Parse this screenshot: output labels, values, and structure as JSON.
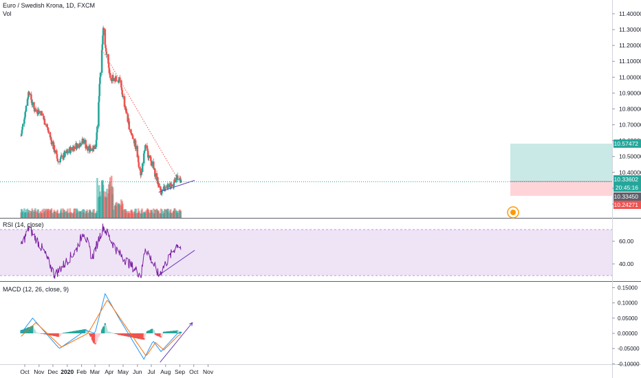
{
  "header": {
    "symbol_title": "Euro / Swedish Krona, 1D, FXCM",
    "volume_label": "Vol"
  },
  "panes": {
    "rsi": {
      "title": "RSI (14, close)",
      "ticks": [
        "60.00",
        "40.00"
      ]
    },
    "macd": {
      "title": "MACD (12, 26, close, 9)",
      "ticks": [
        "0.15000",
        "0.10000",
        "0.05000",
        "0.00000",
        "-0.05000",
        "-0.10000"
      ]
    }
  },
  "price_axis": {
    "ticks": [
      "11.40000",
      "11.30000",
      "11.20000",
      "11.10000",
      "11.00000",
      "10.90000",
      "10.80000",
      "10.70000",
      "10.60000",
      "10.50000",
      "10.40000",
      "10.30000",
      "10.20000"
    ],
    "labels": {
      "target": "10.57472",
      "current": "10.33602",
      "countdown": "20:45:16",
      "entry": "10.33450",
      "stop": "10.24271"
    }
  },
  "time_axis": {
    "labels": [
      "Oct",
      "Nov",
      "Dec",
      "2020",
      "Feb",
      "Mar",
      "Apr",
      "May",
      "Jun",
      "Jul",
      "Aug",
      "Sep",
      "Oct",
      "Nov"
    ]
  },
  "colors": {
    "up": "#26a69a",
    "down": "#ef5350",
    "rsi": "#7b1fa2",
    "macd": "#2196f3",
    "signal": "#ff6d00",
    "trend": "#673ab7"
  },
  "chart_data": [
    {
      "type": "candlestick",
      "title": "Euro / Swedish Krona, 1D, FXCM",
      "ylim": [
        10.2,
        11.42
      ],
      "key_points": [
        {
          "date": "2019-09-23",
          "close": 10.63
        },
        {
          "date": "2019-10-10",
          "close": 10.92
        },
        {
          "date": "2019-10-20",
          "close": 10.8
        },
        {
          "date": "2019-11-05",
          "close": 10.78
        },
        {
          "date": "2019-11-20",
          "close": 10.67
        },
        {
          "date": "2019-12-12",
          "close": 10.47
        },
        {
          "date": "2020-01-10",
          "close": 10.55
        },
        {
          "date": "2020-02-06",
          "close": 10.6
        },
        {
          "date": "2020-02-14",
          "close": 10.54
        },
        {
          "date": "2020-03-03",
          "close": 10.57
        },
        {
          "date": "2020-03-16",
          "close": 11.18
        },
        {
          "date": "2020-03-19",
          "close": 11.3
        },
        {
          "date": "2020-04-03",
          "close": 11.0
        },
        {
          "date": "2020-04-23",
          "close": 10.98
        },
        {
          "date": "2020-05-15",
          "close": 10.68
        },
        {
          "date": "2020-05-27",
          "close": 10.58
        },
        {
          "date": "2020-06-09",
          "close": 10.38
        },
        {
          "date": "2020-06-18",
          "close": 10.56
        },
        {
          "date": "2020-07-03",
          "close": 10.45
        },
        {
          "date": "2020-07-15",
          "close": 10.34
        },
        {
          "date": "2020-07-22",
          "close": 10.28
        },
        {
          "date": "2020-08-18",
          "close": 10.33
        },
        {
          "date": "2020-08-26",
          "close": 10.38
        },
        {
          "date": "2020-09-03",
          "close": 10.336
        }
      ],
      "current_price": 10.33602,
      "position": {
        "target": 10.57472,
        "entry": 10.3345,
        "stop": 10.24271
      },
      "trendlines": [
        {
          "from": {
            "date": "2020-03-17",
            "y": 11.17
          },
          "to": {
            "date": "2020-08-27",
            "y": 10.36
          },
          "style": "dotted"
        },
        {
          "from": {
            "date": "2020-07-17",
            "y": 10.275
          },
          "to": {
            "date": "2020-10-03",
            "y": 10.35
          },
          "style": "solid"
        }
      ]
    },
    {
      "type": "line",
      "title": "RSI (14, close)",
      "ylim": [
        25,
        78
      ],
      "bands": [
        30,
        70
      ],
      "key_points": [
        {
          "date": "2019-09-23",
          "y": 55
        },
        {
          "date": "2019-10-10",
          "y": 72
        },
        {
          "date": "2019-11-10",
          "y": 52
        },
        {
          "date": "2019-12-05",
          "y": 30
        },
        {
          "date": "2020-01-20",
          "y": 52
        },
        {
          "date": "2020-02-06",
          "y": 69
        },
        {
          "date": "2020-02-24",
          "y": 45
        },
        {
          "date": "2020-03-19",
          "y": 73
        },
        {
          "date": "2020-04-20",
          "y": 50
        },
        {
          "date": "2020-06-09",
          "y": 30
        },
        {
          "date": "2020-06-18",
          "y": 55
        },
        {
          "date": "2020-07-17",
          "y": 30
        },
        {
          "date": "2020-08-27",
          "y": 58
        },
        {
          "date": "2020-09-03",
          "y": 54
        }
      ],
      "trendline": {
        "from": {
          "date": "2020-07-17",
          "y": 30
        },
        "to": {
          "date": "2020-10-03",
          "y": 52
        }
      }
    },
    {
      "type": "line",
      "title": "MACD (12, 26, close, 9)",
      "ylim": [
        -0.12,
        0.17
      ],
      "series": [
        {
          "key_points": [
            {
              "date": "2019-09-23",
              "y": 0.0
            },
            {
              "date": "2019-10-18",
              "y": 0.05
            },
            {
              "date": "2019-12-15",
              "y": -0.05
            },
            {
              "date": "2020-02-10",
              "y": 0.01
            },
            {
              "date": "2020-03-01",
              "y": 0.0
            },
            {
              "date": "2020-03-23",
              "y": 0.13
            },
            {
              "date": "2020-04-22",
              "y": 0.05
            },
            {
              "date": "2020-06-15",
              "y": -0.085
            },
            {
              "date": "2020-07-05",
              "y": -0.025
            },
            {
              "date": "2020-07-22",
              "y": -0.06
            },
            {
              "date": "2020-08-27",
              "y": 0.0
            }
          ]
        },
        {
          "key_points": [
            {
              "date": "2019-09-23",
              "y": -0.01
            },
            {
              "date": "2019-10-25",
              "y": 0.035
            },
            {
              "date": "2019-12-20",
              "y": -0.045
            },
            {
              "date": "2020-02-15",
              "y": 0.0
            },
            {
              "date": "2020-03-28",
              "y": 0.11
            },
            {
              "date": "2020-06-20",
              "y": -0.075
            },
            {
              "date": "2020-07-10",
              "y": -0.03
            },
            {
              "date": "2020-07-28",
              "y": -0.055
            },
            {
              "date": "2020-08-30",
              "y": -0.005
            }
          ]
        }
      ],
      "trendline": {
        "from": {
          "date": "2020-07-20",
          "y": -0.095
        },
        "to": {
          "date": "2020-09-28",
          "y": 0.035
        }
      }
    }
  ]
}
